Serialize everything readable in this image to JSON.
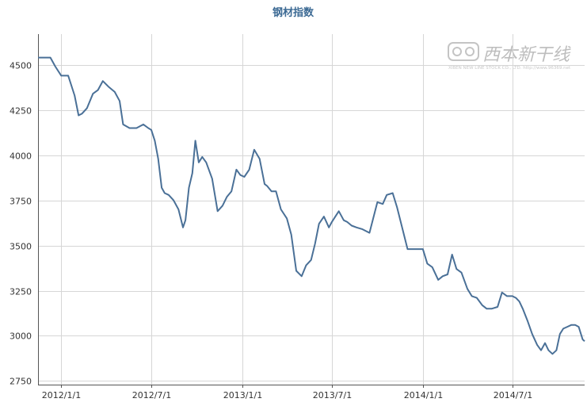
{
  "chart_data": {
    "type": "line",
    "title": "钢材指数",
    "xlabel": "",
    "ylabel": "",
    "ylim": [
      2730,
      4670
    ],
    "grid": true,
    "legend": "none",
    "y_ticks": [
      2750,
      3000,
      3250,
      3500,
      3750,
      4000,
      4250,
      4500
    ],
    "y_tick_labels": [
      "2750",
      "3000",
      "3250",
      "3500",
      "3750",
      "4000",
      "4250",
      "4500"
    ],
    "x_ticks": [
      "2012-01-01",
      "2012-07-01",
      "2013-01-01",
      "2013-07-01",
      "2014-01-01",
      "2014-07-01"
    ],
    "x_tick_labels": [
      "2012/1/1",
      "2012/7/1",
      "2013/1/1",
      "2013/7/1",
      "2014/1/1",
      "2014/7/1"
    ],
    "xlim": [
      "2011-11-15",
      "2014-11-24"
    ],
    "series": [
      {
        "color": "#4a7097",
        "x": [
          "2011-11-15",
          "2011-12-10",
          "2011-12-20",
          "2012-01-01",
          "2012-01-15",
          "2012-01-28",
          "2012-02-05",
          "2012-02-12",
          "2012-02-22",
          "2012-03-05",
          "2012-03-15",
          "2012-03-25",
          "2012-04-05",
          "2012-04-18",
          "2012-04-28",
          "2012-05-05",
          "2012-05-18",
          "2012-06-01",
          "2012-06-15",
          "2012-06-25",
          "2012-07-01",
          "2012-07-08",
          "2012-07-15",
          "2012-07-22",
          "2012-07-28",
          "2012-08-05",
          "2012-08-15",
          "2012-08-25",
          "2012-09-03",
          "2012-09-08",
          "2012-09-15",
          "2012-09-22",
          "2012-09-28",
          "2012-10-05",
          "2012-10-12",
          "2012-10-20",
          "2012-11-01",
          "2012-11-12",
          "2012-11-22",
          "2012-12-01",
          "2012-12-10",
          "2012-12-20",
          "2012-12-28",
          "2013-01-05",
          "2013-01-15",
          "2013-01-25",
          "2013-02-05",
          "2013-02-15",
          "2013-02-20",
          "2013-03-01",
          "2013-03-10",
          "2013-03-20",
          "2013-04-01",
          "2013-04-10",
          "2013-04-20",
          "2013-05-01",
          "2013-05-10",
          "2013-05-20",
          "2013-05-28",
          "2013-06-05",
          "2013-06-15",
          "2013-06-25",
          "2013-07-01",
          "2013-07-08",
          "2013-07-15",
          "2013-07-25",
          "2013-08-01",
          "2013-08-10",
          "2013-08-20",
          "2013-09-01",
          "2013-09-15",
          "2013-10-01",
          "2013-10-12",
          "2013-10-20",
          "2013-11-01",
          "2013-11-10",
          "2013-11-20",
          "2013-12-01",
          "2013-12-10",
          "2013-12-20",
          "2014-01-01",
          "2014-01-10",
          "2014-01-20",
          "2014-02-01",
          "2014-02-10",
          "2014-02-20",
          "2014-03-01",
          "2014-03-10",
          "2014-03-20",
          "2014-04-01",
          "2014-04-10",
          "2014-04-20",
          "2014-05-01",
          "2014-05-10",
          "2014-05-20",
          "2014-06-01",
          "2014-06-10",
          "2014-06-20",
          "2014-07-01",
          "2014-07-08",
          "2014-07-15",
          "2014-07-22",
          "2014-08-01",
          "2014-08-10",
          "2014-08-20",
          "2014-08-28",
          "2014-09-05",
          "2014-09-12",
          "2014-09-20",
          "2014-09-28",
          "2014-10-05",
          "2014-10-12",
          "2014-10-20",
          "2014-10-28",
          "2014-11-05",
          "2014-11-12",
          "2014-11-20",
          "2014-11-24"
        ],
        "values": [
          4540,
          4540,
          4490,
          4440,
          4440,
          4330,
          4220,
          4230,
          4260,
          4340,
          4360,
          4410,
          4380,
          4350,
          4300,
          4170,
          4150,
          4150,
          4170,
          4150,
          4140,
          4080,
          3980,
          3820,
          3790,
          3780,
          3750,
          3700,
          3600,
          3640,
          3820,
          3900,
          4080,
          3960,
          3990,
          3960,
          3870,
          3690,
          3720,
          3770,
          3800,
          3920,
          3890,
          3880,
          3920,
          4030,
          3980,
          3840,
          3830,
          3800,
          3800,
          3700,
          3650,
          3560,
          3360,
          3330,
          3390,
          3420,
          3510,
          3620,
          3660,
          3600,
          3630,
          3660,
          3690,
          3640,
          3630,
          3610,
          3600,
          3590,
          3570,
          3740,
          3730,
          3780,
          3790,
          3710,
          3600,
          3480,
          3480,
          3480,
          3480,
          3400,
          3380,
          3310,
          3330,
          3340,
          3450,
          3370,
          3350,
          3260,
          3220,
          3210,
          3170,
          3150,
          3150,
          3160,
          3240,
          3220,
          3220,
          3210,
          3190,
          3150,
          3080,
          3010,
          2950,
          2920,
          2960,
          2920,
          2900,
          2920,
          3010,
          3040,
          3050,
          3060,
          3060,
          3050,
          2980,
          2970
        ]
      }
    ],
    "watermark": {
      "cn": "西本新干线",
      "en": "XIBEN NEW LINE STOCK CO., LTD.  http://www.96369.net",
      "logo": "xb-logo-icon"
    }
  }
}
